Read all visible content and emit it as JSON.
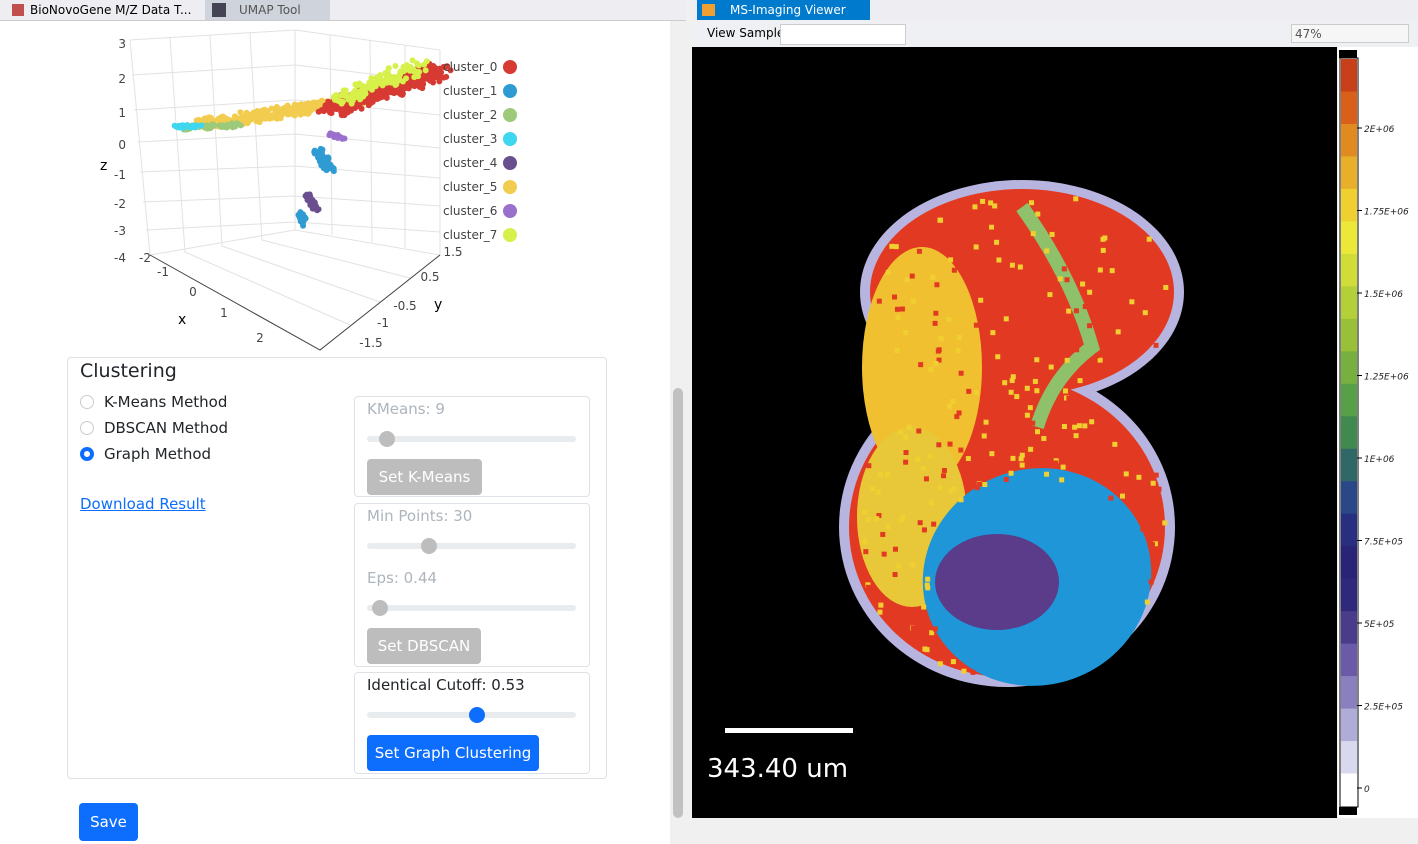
{
  "tabs_left": [
    {
      "label": "BioNovoGene M/Z Data T..."
    },
    {
      "label": "UMAP Tool"
    }
  ],
  "plot": {
    "axis_titles": {
      "x": "x",
      "y": "y",
      "z": "z"
    },
    "z_ticks": [
      "3",
      "2",
      "1",
      "0",
      "-1",
      "-2",
      "-3",
      "-4"
    ],
    "x_ticks": [
      "-2",
      "-1",
      "0",
      "1",
      "2"
    ],
    "y_ticks": [
      "1.5",
      "0.5",
      "-0.5",
      "-1",
      "-1.5"
    ],
    "legend": [
      {
        "name": "cluster_0",
        "color": "#d63a32"
      },
      {
        "name": "cluster_1",
        "color": "#2f9bd3"
      },
      {
        "name": "cluster_2",
        "color": "#9cc97a"
      },
      {
        "name": "cluster_3",
        "color": "#3fd6f0"
      },
      {
        "name": "cluster_4",
        "color": "#6a4f8e"
      },
      {
        "name": "cluster_5",
        "color": "#f2cc4e"
      },
      {
        "name": "cluster_6",
        "color": "#9b6fcc"
      },
      {
        "name": "cluster_7",
        "color": "#d7f04a"
      }
    ]
  },
  "clustering": {
    "title": "Clustering",
    "methods": [
      {
        "label": "K-Means Method",
        "checked": false
      },
      {
        "label": "DBSCAN Method",
        "checked": false
      },
      {
        "label": "Graph Method",
        "checked": true
      }
    ],
    "download": "Download Result",
    "kmeans": {
      "label": "KMeans: 9",
      "button": "Set K-Means"
    },
    "dbscan": {
      "min_points": "Min Points: 30",
      "eps": "Eps: 0.44",
      "button": "Set DBSCAN"
    },
    "graph": {
      "cutoff": "Identical Cutoff: 0.53",
      "button": "Set Graph Clustering"
    },
    "save": "Save"
  },
  "viewer": {
    "tab": "MS-Imaging Viewer",
    "view_sample": "View Sample:",
    "zoom": "47%",
    "scale_bar": "343.40 um",
    "colorbar": {
      "labels": [
        "2E+06",
        "1.75E+06",
        "1.5E+06",
        "1.25E+06",
        "1E+06",
        "7.5E+05",
        "5E+05",
        "2.5E+05",
        "0"
      ]
    }
  }
}
